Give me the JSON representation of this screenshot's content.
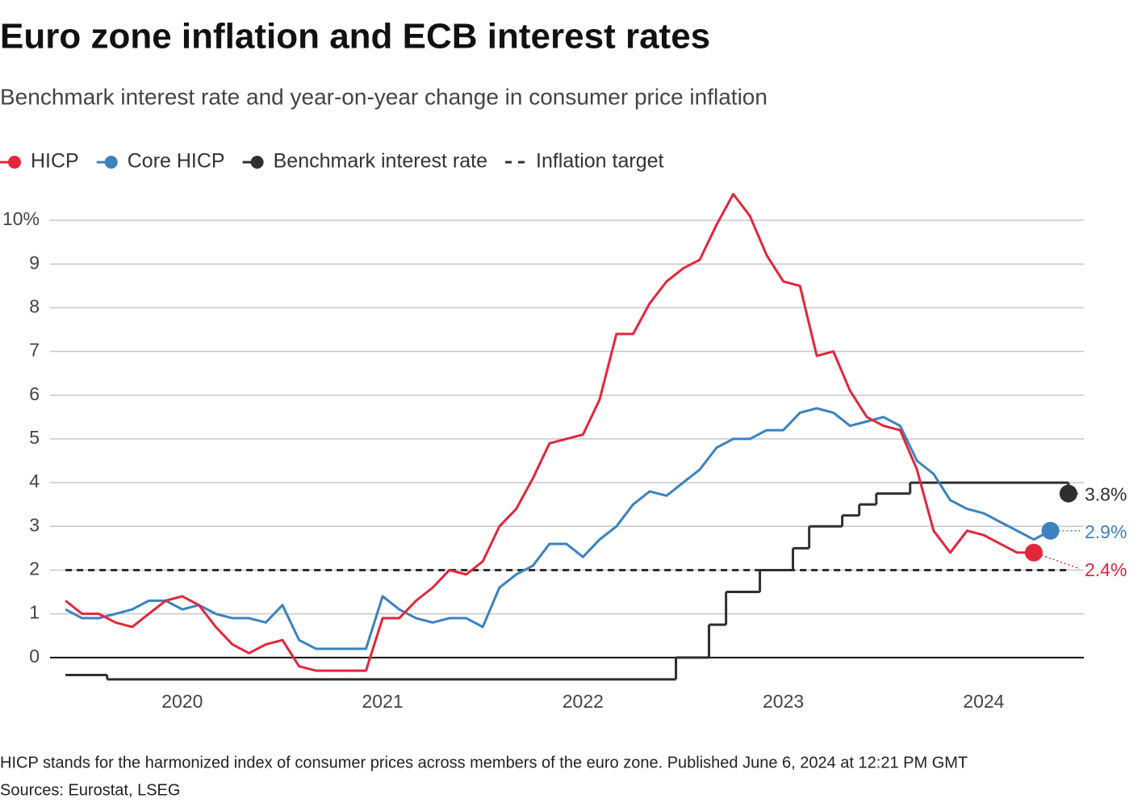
{
  "chart_data": {
    "type": "line",
    "title": "Euro zone inflation and ECB interest rates",
    "subtitle": "Benchmark interest rate and year-on-year change in consumer price inflation",
    "note": "HICP stands for the harmonized index of consumer prices across members of the euro zone. Published June 6, 2024 at 12:21 PM GMT",
    "source": "Sources: Eurostat, LSEG",
    "xlim": [
      2019.34,
      2024.5
    ],
    "xticks": [
      2020,
      2021,
      2022,
      2023,
      2024
    ],
    "ylim": [
      -1,
      10.6
    ],
    "yticks": [
      {
        "value": 10,
        "label": "10%"
      },
      9,
      8,
      7,
      6,
      5,
      4,
      3,
      2,
      1,
      0
    ],
    "grid": true,
    "series": [
      {
        "name": "HICP",
        "color": "#e3263c",
        "end_label": "2.4%",
        "x": [
          2019.417,
          2019.5,
          2019.583,
          2019.667,
          2019.75,
          2019.833,
          2019.917,
          2020,
          2020.083,
          2020.167,
          2020.25,
          2020.333,
          2020.417,
          2020.5,
          2020.583,
          2020.667,
          2020.75,
          2020.833,
          2020.917,
          2021,
          2021.083,
          2021.167,
          2021.25,
          2021.333,
          2021.417,
          2021.5,
          2021.583,
          2021.667,
          2021.75,
          2021.833,
          2021.917,
          2022,
          2022.083,
          2022.167,
          2022.25,
          2022.333,
          2022.417,
          2022.5,
          2022.583,
          2022.667,
          2022.75,
          2022.833,
          2022.917,
          2023,
          2023.083,
          2023.167,
          2023.25,
          2023.333,
          2023.417,
          2023.5,
          2023.583,
          2023.667,
          2023.75,
          2023.833,
          2023.917,
          2024,
          2024.083,
          2024.167,
          2024.25
        ],
        "values": [
          1.3,
          1.0,
          1.0,
          0.8,
          0.7,
          1.0,
          1.3,
          1.4,
          1.2,
          0.7,
          0.3,
          0.1,
          0.3,
          0.4,
          -0.2,
          -0.3,
          -0.3,
          -0.3,
          -0.3,
          0.9,
          0.9,
          1.3,
          1.6,
          2.0,
          1.9,
          2.2,
          3.0,
          3.4,
          4.1,
          4.9,
          5.0,
          5.1,
          5.9,
          7.4,
          7.4,
          8.1,
          8.6,
          8.9,
          9.1,
          9.9,
          10.6,
          10.1,
          9.2,
          8.6,
          8.5,
          6.9,
          7.0,
          6.1,
          5.5,
          5.3,
          5.2,
          4.3,
          2.9,
          2.4,
          2.9,
          2.8,
          2.6,
          2.4,
          2.4
        ]
      },
      {
        "name": "Core HICP",
        "color": "#3a82c0",
        "end_label": "2.9%",
        "x": [
          2019.417,
          2019.5,
          2019.583,
          2019.667,
          2019.75,
          2019.833,
          2019.917,
          2020,
          2020.083,
          2020.167,
          2020.25,
          2020.333,
          2020.417,
          2020.5,
          2020.583,
          2020.667,
          2020.75,
          2020.833,
          2020.917,
          2021,
          2021.083,
          2021.167,
          2021.25,
          2021.333,
          2021.417,
          2021.5,
          2021.583,
          2021.667,
          2021.75,
          2021.833,
          2021.917,
          2022,
          2022.083,
          2022.167,
          2022.25,
          2022.333,
          2022.417,
          2022.5,
          2022.583,
          2022.667,
          2022.75,
          2022.833,
          2022.917,
          2023,
          2023.083,
          2023.167,
          2023.25,
          2023.333,
          2023.417,
          2023.5,
          2023.583,
          2023.667,
          2023.75,
          2023.833,
          2023.917,
          2024,
          2024.083,
          2024.167,
          2024.25,
          2024.333
        ],
        "values": [
          1.1,
          0.9,
          0.9,
          1.0,
          1.1,
          1.3,
          1.3,
          1.1,
          1.2,
          1.0,
          0.9,
          0.9,
          0.8,
          1.2,
          0.4,
          0.2,
          0.2,
          0.2,
          0.2,
          1.4,
          1.1,
          0.9,
          0.8,
          0.9,
          0.9,
          0.7,
          1.6,
          1.9,
          2.1,
          2.6,
          2.6,
          2.3,
          2.7,
          3.0,
          3.5,
          3.8,
          3.7,
          4.0,
          4.3,
          4.8,
          5.0,
          5.0,
          5.2,
          5.2,
          5.6,
          5.7,
          5.6,
          5.3,
          5.4,
          5.5,
          5.3,
          4.5,
          4.2,
          3.6,
          3.4,
          3.3,
          3.1,
          2.9,
          2.7,
          2.9
        ]
      },
      {
        "name": "Benchmark interest rate",
        "color": "#2f2f2f",
        "step": "after",
        "end_label": "3.8%",
        "x": [
          2019.417,
          2019.625,
          2022.464,
          2022.629,
          2022.714,
          2022.883,
          2023.048,
          2023.129,
          2023.294,
          2023.379,
          2023.464,
          2023.633,
          2024.423
        ],
        "values": [
          -0.4,
          -0.5,
          0,
          0.75,
          1.5,
          2,
          2.5,
          3,
          3.25,
          3.5,
          3.75,
          4,
          3.75
        ]
      }
    ],
    "target": {
      "name": "Inflation target",
      "value": 2,
      "color": "#2f2f2f"
    }
  }
}
